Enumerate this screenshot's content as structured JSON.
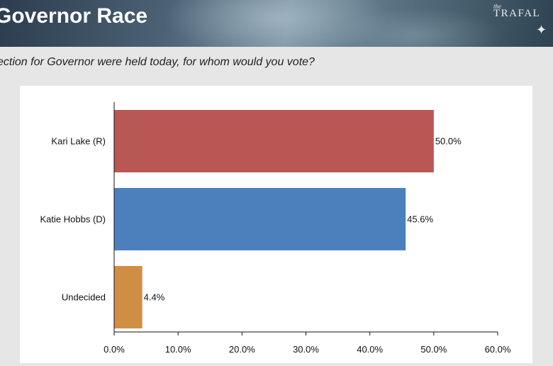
{
  "header": {
    "title": "Governor Race",
    "logo_small": "the",
    "logo_text": "TRAFAL"
  },
  "question": "ection for Governor were held today, for whom would you vote?",
  "chart_data": {
    "type": "bar",
    "orientation": "horizontal",
    "categories": [
      "Kari Lake (R)",
      "Katie Hobbs (D)",
      "Undecided"
    ],
    "values": [
      50.0,
      45.6,
      4.4
    ],
    "value_labels": [
      "50.0%",
      "45.6%",
      "4.4%"
    ],
    "colors": [
      "#b85754",
      "#4b80bd",
      "#d08e45"
    ],
    "xlim": [
      0,
      60
    ],
    "xticks": [
      0,
      10,
      20,
      30,
      40,
      50,
      60
    ],
    "xtick_labels": [
      "0.0%",
      "10.0%",
      "20.0%",
      "30.0%",
      "40.0%",
      "50.0%",
      "60.0%"
    ],
    "grid": false,
    "legend": "none"
  }
}
